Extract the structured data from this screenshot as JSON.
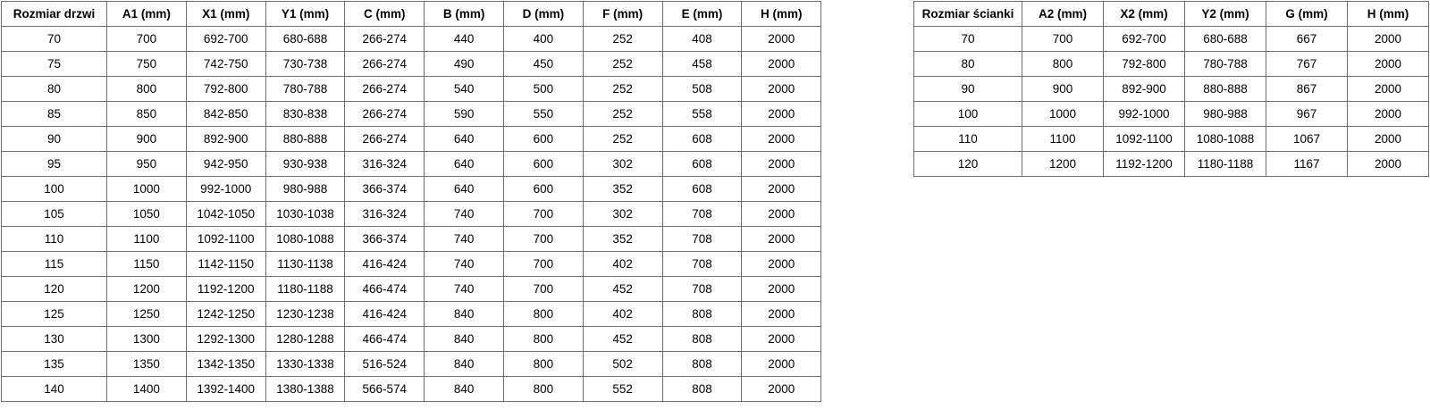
{
  "colors": {
    "background": "#ffffff",
    "border": "#6e6e6e",
    "text": "#000000"
  },
  "tables": [
    {
      "name": "door-sizes-table",
      "headers": [
        "Rozmiar drzwi",
        "A1 (mm)",
        "X1 (mm)",
        "Y1 (mm)",
        "C (mm)",
        "B (mm)",
        "D (mm)",
        "F (mm)",
        "E (mm)",
        "H (mm)"
      ],
      "rows": [
        [
          "70",
          "700",
          "692-700",
          "680-688",
          "266-274",
          "440",
          "400",
          "252",
          "408",
          "2000"
        ],
        [
          "75",
          "750",
          "742-750",
          "730-738",
          "266-274",
          "490",
          "450",
          "252",
          "458",
          "2000"
        ],
        [
          "80",
          "800",
          "792-800",
          "780-788",
          "266-274",
          "540",
          "500",
          "252",
          "508",
          "2000"
        ],
        [
          "85",
          "850",
          "842-850",
          "830-838",
          "266-274",
          "590",
          "550",
          "252",
          "558",
          "2000"
        ],
        [
          "90",
          "900",
          "892-900",
          "880-888",
          "266-274",
          "640",
          "600",
          "252",
          "608",
          "2000"
        ],
        [
          "95",
          "950",
          "942-950",
          "930-938",
          "316-324",
          "640",
          "600",
          "302",
          "608",
          "2000"
        ],
        [
          "100",
          "1000",
          "992-1000",
          "980-988",
          "366-374",
          "640",
          "600",
          "352",
          "608",
          "2000"
        ],
        [
          "105",
          "1050",
          "1042-1050",
          "1030-1038",
          "316-324",
          "740",
          "700",
          "302",
          "708",
          "2000"
        ],
        [
          "110",
          "1100",
          "1092-1100",
          "1080-1088",
          "366-374",
          "740",
          "700",
          "352",
          "708",
          "2000"
        ],
        [
          "115",
          "1150",
          "1142-1150",
          "1130-1138",
          "416-424",
          "740",
          "700",
          "402",
          "708",
          "2000"
        ],
        [
          "120",
          "1200",
          "1192-1200",
          "1180-1188",
          "466-474",
          "740",
          "700",
          "452",
          "708",
          "2000"
        ],
        [
          "125",
          "1250",
          "1242-1250",
          "1230-1238",
          "416-424",
          "840",
          "800",
          "402",
          "808",
          "2000"
        ],
        [
          "130",
          "1300",
          "1292-1300",
          "1280-1288",
          "466-474",
          "840",
          "800",
          "452",
          "808",
          "2000"
        ],
        [
          "135",
          "1350",
          "1342-1350",
          "1330-1338",
          "516-524",
          "840",
          "800",
          "502",
          "808",
          "2000"
        ],
        [
          "140",
          "1400",
          "1392-1400",
          "1380-1388",
          "566-574",
          "840",
          "800",
          "552",
          "808",
          "2000"
        ]
      ]
    },
    {
      "name": "wall-sizes-table",
      "headers": [
        "Rozmiar ścianki",
        "A2 (mm)",
        "X2 (mm)",
        "Y2 (mm)",
        "G (mm)",
        "H (mm)"
      ],
      "rows": [
        [
          "70",
          "700",
          "692-700",
          "680-688",
          "667",
          "2000"
        ],
        [
          "80",
          "800",
          "792-800",
          "780-788",
          "767",
          "2000"
        ],
        [
          "90",
          "900",
          "892-900",
          "880-888",
          "867",
          "2000"
        ],
        [
          "100",
          "1000",
          "992-1000",
          "980-988",
          "967",
          "2000"
        ],
        [
          "110",
          "1100",
          "1092-1100",
          "1080-1088",
          "1067",
          "2000"
        ],
        [
          "120",
          "1200",
          "1192-1200",
          "1180-1188",
          "1167",
          "2000"
        ]
      ]
    }
  ]
}
